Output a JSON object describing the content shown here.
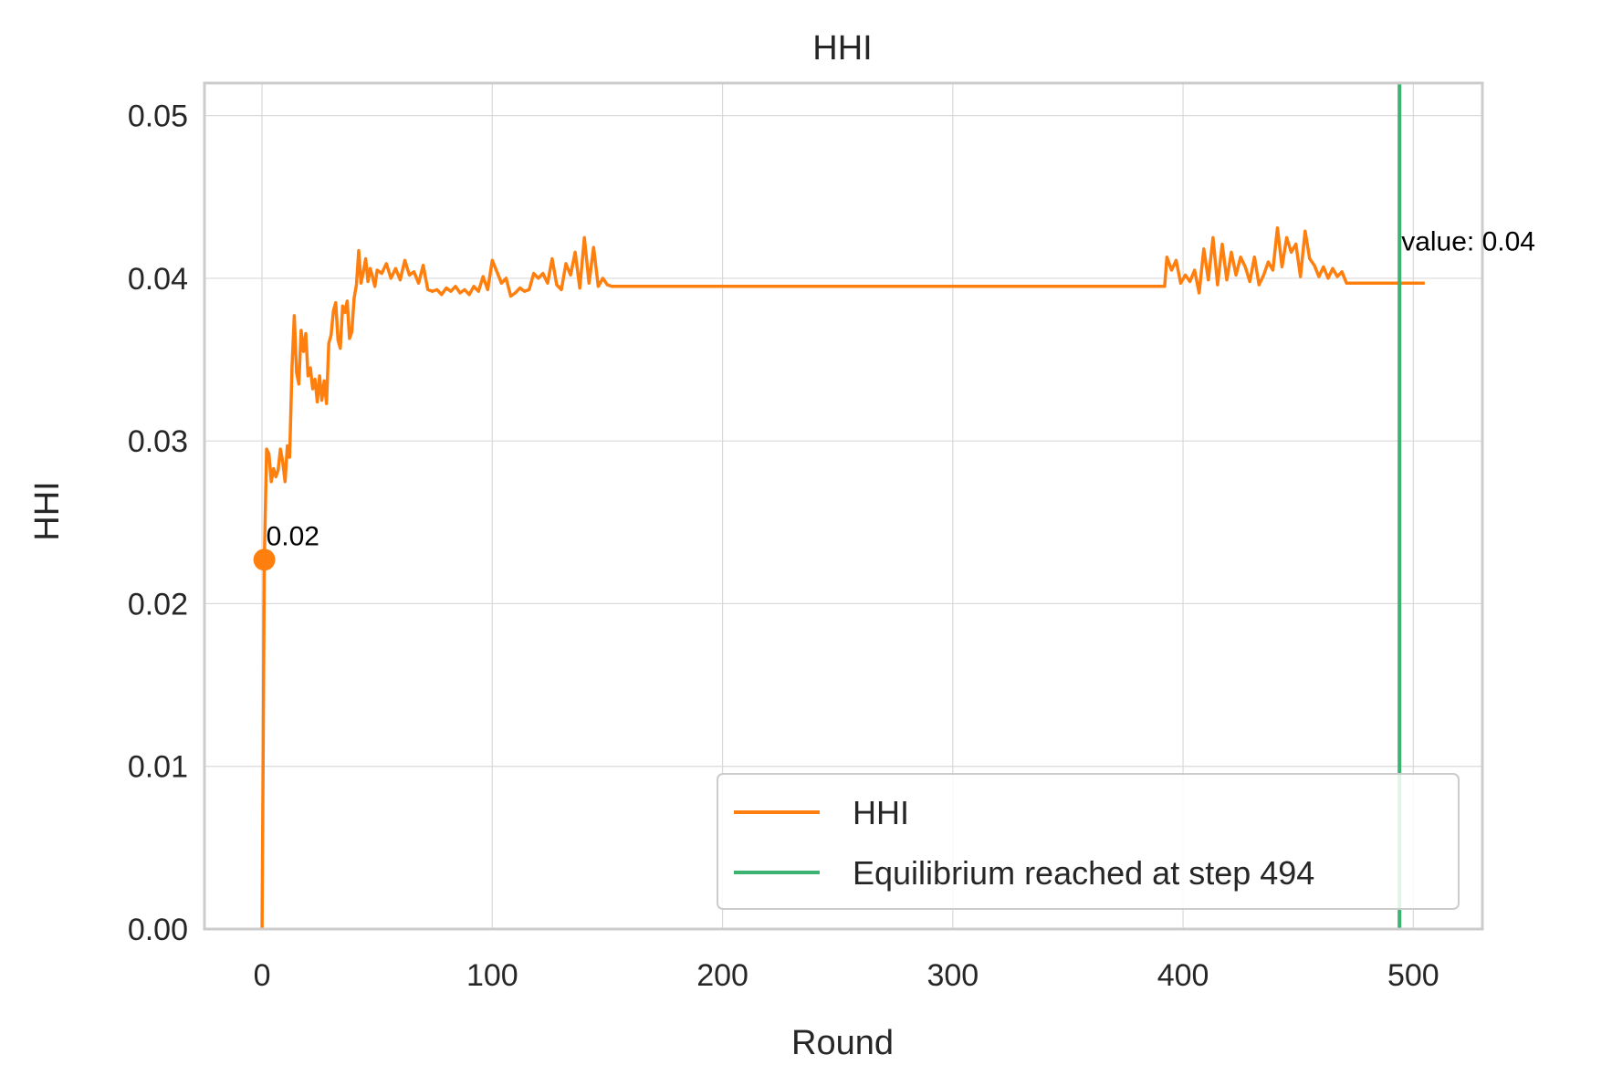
{
  "chart_data": {
    "type": "line",
    "title": "HHI",
    "xlabel": "Round",
    "ylabel": "HHI",
    "xlim": [
      -25,
      530
    ],
    "ylim": [
      0,
      0.052
    ],
    "xticks": [
      0,
      100,
      200,
      300,
      400,
      500
    ],
    "xtick_labels": [
      "0",
      "100",
      "200",
      "300",
      "400",
      "500"
    ],
    "yticks": [
      0,
      0.01,
      0.02,
      0.03,
      0.04,
      0.05
    ],
    "ytick_labels": [
      "0.00",
      "0.01",
      "0.02",
      "0.03",
      "0.04",
      "0.05"
    ],
    "grid": true,
    "legend_position": "bottom-right",
    "series": [
      {
        "name": "HHI",
        "color": "#ff7f0e",
        "x": [
          0,
          1,
          2,
          3,
          4,
          5,
          6,
          7,
          8,
          9,
          10,
          11,
          12,
          13,
          14,
          15,
          16,
          17,
          18,
          19,
          20,
          21,
          22,
          23,
          24,
          25,
          26,
          27,
          28,
          29,
          30,
          31,
          32,
          33,
          34,
          35,
          36,
          37,
          38,
          39,
          40,
          41,
          42,
          43,
          44,
          45,
          46,
          47,
          48,
          49,
          50,
          52,
          54,
          56,
          58,
          60,
          62,
          64,
          66,
          68,
          70,
          72,
          74,
          76,
          78,
          80,
          82,
          84,
          86,
          88,
          90,
          92,
          94,
          96,
          98,
          100,
          102,
          104,
          106,
          108,
          110,
          112,
          114,
          116,
          118,
          120,
          122,
          124,
          126,
          128,
          130,
          132,
          134,
          136,
          138,
          140,
          142,
          144,
          146,
          148,
          150,
          152,
          154,
          156,
          158,
          392,
          393,
          395,
          397,
          399,
          401,
          403,
          405,
          407,
          409,
          411,
          413,
          415,
          417,
          419,
          421,
          423,
          425,
          427,
          429,
          431,
          433,
          435,
          437,
          439,
          441,
          443,
          445,
          447,
          449,
          451,
          453,
          455,
          457,
          459,
          461,
          463,
          465,
          467,
          469,
          471,
          473,
          494,
          505
        ],
        "values": [
          0.0,
          0.0227,
          0.0295,
          0.0292,
          0.0275,
          0.0283,
          0.0278,
          0.0282,
          0.0295,
          0.0287,
          0.0275,
          0.0297,
          0.029,
          0.0345,
          0.0377,
          0.0342,
          0.0335,
          0.0368,
          0.0355,
          0.0366,
          0.034,
          0.0345,
          0.0332,
          0.0338,
          0.0324,
          0.034,
          0.0325,
          0.0337,
          0.0323,
          0.036,
          0.0365,
          0.038,
          0.0385,
          0.0362,
          0.0357,
          0.0383,
          0.0379,
          0.0386,
          0.0363,
          0.0367,
          0.0388,
          0.0396,
          0.0417,
          0.0397,
          0.0404,
          0.0412,
          0.0398,
          0.0406,
          0.0401,
          0.0395,
          0.0405,
          0.0403,
          0.0409,
          0.04,
          0.0406,
          0.0399,
          0.0411,
          0.0402,
          0.0404,
          0.0397,
          0.0408,
          0.0393,
          0.0392,
          0.0393,
          0.039,
          0.0394,
          0.0392,
          0.0395,
          0.0391,
          0.0393,
          0.039,
          0.0395,
          0.0392,
          0.0401,
          0.0393,
          0.0411,
          0.0404,
          0.0397,
          0.04,
          0.0389,
          0.0391,
          0.0394,
          0.0392,
          0.0393,
          0.0403,
          0.04,
          0.0403,
          0.0397,
          0.0412,
          0.0396,
          0.0393,
          0.0409,
          0.0402,
          0.0416,
          0.0394,
          0.0425,
          0.0397,
          0.0419,
          0.0395,
          0.04,
          0.0396,
          0.0395,
          0.0395,
          0.0395,
          0.0395,
          0.0395,
          0.0413,
          0.0405,
          0.0411,
          0.0397,
          0.0402,
          0.0398,
          0.0405,
          0.0391,
          0.0418,
          0.0399,
          0.0425,
          0.0396,
          0.0421,
          0.0399,
          0.0416,
          0.0402,
          0.0413,
          0.0407,
          0.0398,
          0.0413,
          0.0396,
          0.0402,
          0.041,
          0.0405,
          0.0431,
          0.0407,
          0.0425,
          0.0416,
          0.0421,
          0.0401,
          0.0429,
          0.0412,
          0.0408,
          0.0401,
          0.0407,
          0.04,
          0.0406,
          0.0401,
          0.0404,
          0.0397,
          0.0397,
          0.0397,
          0.0397
        ]
      },
      {
        "name": "Equilibrium reached at step 494",
        "color": "#3cb371",
        "vline_x": 494
      }
    ],
    "annotations": [
      {
        "text": "0.02",
        "x": 1,
        "y": 0.0227,
        "marker": true
      },
      {
        "text": "value: 0.04",
        "x": 494,
        "y": 0.0408,
        "marker": false
      }
    ]
  }
}
